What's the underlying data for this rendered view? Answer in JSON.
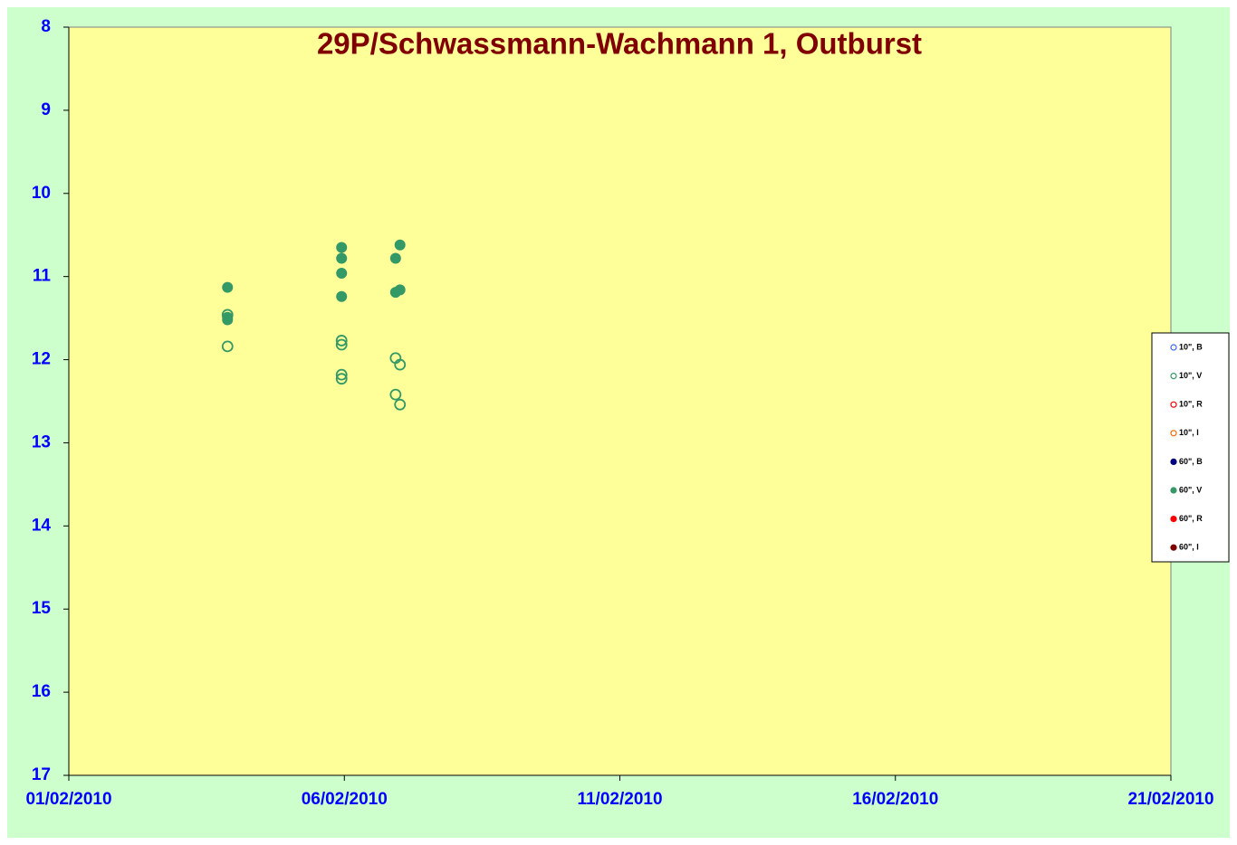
{
  "chart_data": {
    "type": "scatter",
    "title": "29P/Schwassmann-Wachmann 1, Outburst",
    "xlim": [
      40210,
      40230
    ],
    "xticks": [
      {
        "value": 40210,
        "label": "01/02/2010"
      },
      {
        "value": 40215,
        "label": "06/02/2010"
      },
      {
        "value": 40220,
        "label": "11/02/2010"
      },
      {
        "value": 40225,
        "label": "16/02/2010"
      },
      {
        "value": 40230,
        "label": "21/02/2010"
      }
    ],
    "ylim": [
      17,
      8
    ],
    "yticks": [
      8,
      9,
      10,
      11,
      12,
      13,
      14,
      15,
      16,
      17
    ],
    "legend": "right",
    "series": [
      {
        "name": "10\", B",
        "color": "#3366ff",
        "marker": "open",
        "x": [],
        "values": []
      },
      {
        "name": "10\", V",
        "color": "#339966",
        "marker": "open",
        "x": [
          40212.88,
          40212.88,
          40214.95,
          40214.95,
          40214.95,
          40214.95,
          40215.93,
          40216.01,
          40215.93,
          40216.01
        ],
        "values": [
          11.46,
          11.84,
          11.82,
          11.77,
          12.18,
          12.23,
          11.98,
          12.06,
          12.42,
          12.54
        ]
      },
      {
        "name": "10\", R",
        "color": "#ff0000",
        "marker": "open",
        "x": [],
        "values": []
      },
      {
        "name": "10\", I",
        "color": "#ff6600",
        "marker": "open",
        "x": [],
        "values": []
      },
      {
        "name": "60\", B",
        "color": "#000080",
        "marker": "filled",
        "x": [],
        "values": []
      },
      {
        "name": "60\", V",
        "color": "#339966",
        "marker": "filled",
        "x": [
          40212.88,
          40212.88,
          40212.88,
          40214.95,
          40214.95,
          40214.95,
          40214.95,
          40215.93,
          40216.01,
          40215.93,
          40216.01
        ],
        "values": [
          11.13,
          11.49,
          11.52,
          10.65,
          10.78,
          10.96,
          11.24,
          10.78,
          10.62,
          11.19,
          11.16
        ]
      },
      {
        "name": "60\", R",
        "color": "#ff0000",
        "marker": "filled",
        "x": [],
        "values": []
      },
      {
        "name": "60\", I",
        "color": "#800000",
        "marker": "filled",
        "x": [],
        "values": []
      }
    ]
  }
}
